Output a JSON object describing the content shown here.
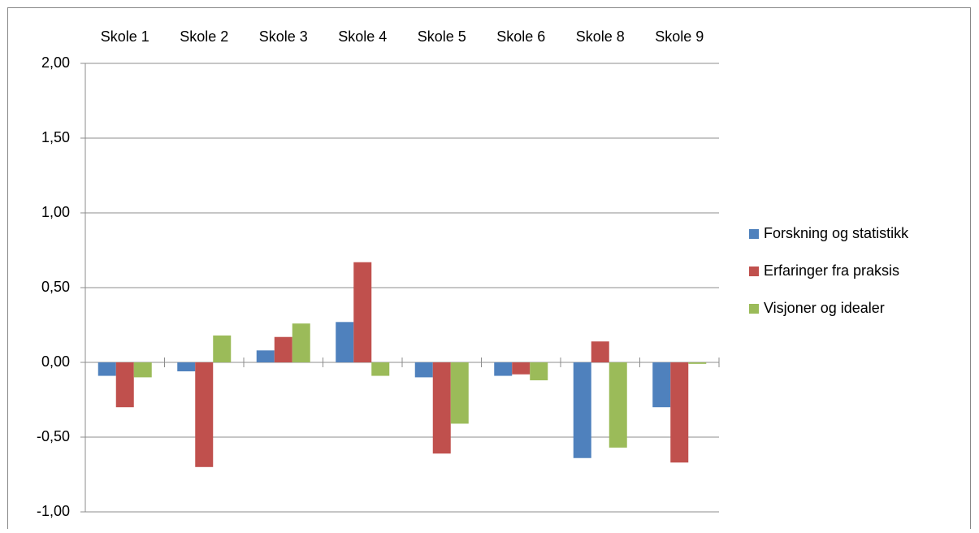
{
  "chart_data": {
    "type": "bar",
    "categories": [
      "Skole 1",
      "Skole 2",
      "Skole 3",
      "Skole 4",
      "Skole 5",
      "Skole 6",
      "Skole 8",
      "Skole 9"
    ],
    "series": [
      {
        "name": "Forskning og statistikk",
        "color": "#4f81bd",
        "values": [
          -0.09,
          -0.06,
          0.08,
          0.27,
          -0.1,
          -0.09,
          -0.64,
          -0.3
        ]
      },
      {
        "name": "Erfaringer fra praksis",
        "color": "#c0504d",
        "values": [
          -0.3,
          -0.7,
          0.17,
          0.67,
          -0.61,
          -0.08,
          0.14,
          -0.67
        ]
      },
      {
        "name": "Visjoner og idealer",
        "color": "#9bbb59",
        "values": [
          -0.1,
          0.18,
          0.26,
          -0.09,
          -0.41,
          -0.12,
          -0.57,
          -0.01
        ]
      }
    ],
    "ylim": [
      -1,
      2
    ],
    "yticks": [
      {
        "value": -1,
        "label": "-1,00"
      },
      {
        "value": -0.5,
        "label": "-0,50"
      },
      {
        "value": 0,
        "label": "0,00"
      },
      {
        "value": 0.5,
        "label": "0,50"
      },
      {
        "value": 1,
        "label": "1,00"
      },
      {
        "value": 1.5,
        "label": "1,50"
      },
      {
        "value": 2,
        "label": "2,00"
      }
    ],
    "grid": true,
    "legend": "right"
  }
}
